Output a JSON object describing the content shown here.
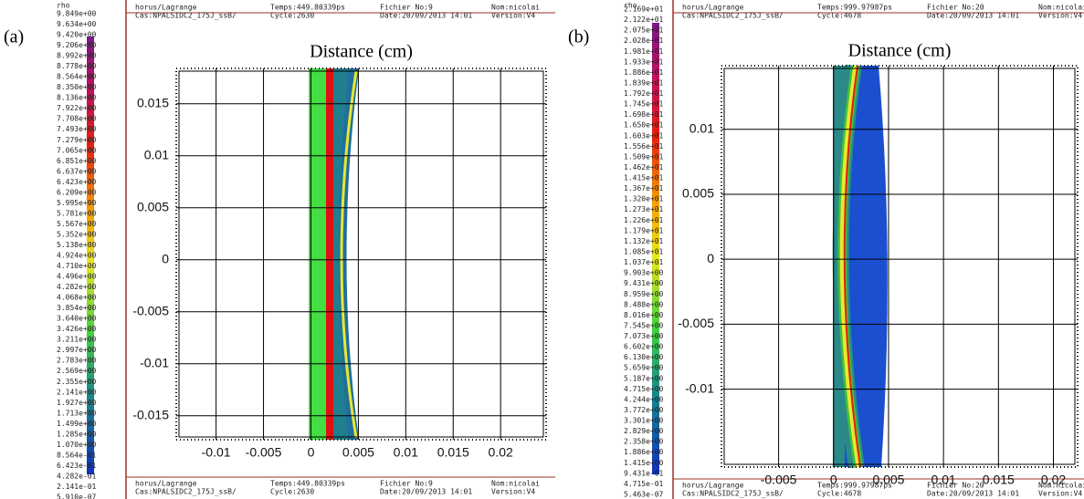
{
  "chart_data": [
    {
      "type": "field",
      "panel_label": "(a)",
      "x_label": "Distance (cm)",
      "colorbar_title": "rho",
      "colorbar_labels": [
        "9.849e+00",
        "9.634e+00",
        "9.420e+00",
        "9.206e+00",
        "8.992e+00",
        "8.778e+00",
        "8.564e+00",
        "8.350e+00",
        "8.136e+00",
        "7.922e+00",
        "7.708e+00",
        "7.493e+00",
        "7.279e+00",
        "7.065e+00",
        "6.851e+00",
        "6.637e+00",
        "6.423e+00",
        "6.209e+00",
        "5.995e+00",
        "5.781e+00",
        "5.567e+00",
        "5.352e+00",
        "5.138e+00",
        "4.924e+00",
        "4.710e+00",
        "4.496e+00",
        "4.282e+00",
        "4.068e+00",
        "3.854e+00",
        "3.640e+00",
        "3.426e+00",
        "3.211e+00",
        "2.997e+00",
        "2.783e+00",
        "2.569e+00",
        "2.355e+00",
        "2.141e+00",
        "1.927e+00",
        "1.713e+00",
        "1.499e+00",
        "1.285e+00",
        "1.070e+00",
        "8.564e-01",
        "6.423e-01",
        "4.282e-01",
        "2.141e-01",
        "5.910e-07"
      ],
      "header": {
        "code": "horus/Lagrange",
        "case": "Cas:NPALSIDC2_175J_ssB/",
        "time": "Temps:449.80339ps",
        "cycle": "Cycle:2630",
        "file": "Fichier No:9",
        "date": "Date:20/09/2013 14:01",
        "name": "Nom:nicolai",
        "version": "Version:V4"
      },
      "xlim": [
        -0.0142,
        0.0248
      ],
      "ylim": [
        -0.0173,
        0.0184
      ],
      "xticks": [
        -0.01,
        -0.005,
        0,
        0.005,
        0.01,
        0.015,
        0.02
      ],
      "yticks": [
        0.015,
        0.01,
        0.005,
        0,
        -0.005,
        -0.01,
        -0.015
      ],
      "grid": true
    },
    {
      "type": "field",
      "panel_label": "(b)",
      "x_label": "Distance (cm)",
      "colorbar_title": "rho",
      "colorbar_labels": [
        "2.169e+01",
        "2.122e+01",
        "2.075e+01",
        "2.028e+01",
        "1.981e+01",
        "1.933e+01",
        "1.886e+01",
        "1.839e+01",
        "1.792e+01",
        "1.745e+01",
        "1.698e+01",
        "1.650e+01",
        "1.603e+01",
        "1.556e+01",
        "1.509e+01",
        "1.462e+01",
        "1.415e+01",
        "1.367e+01",
        "1.320e+01",
        "1.273e+01",
        "1.226e+01",
        "1.179e+01",
        "1.132e+01",
        "1.085e+01",
        "1.037e+01",
        "9.903e+00",
        "9.431e+00",
        "8.959e+00",
        "8.488e+00",
        "8.016e+00",
        "7.545e+00",
        "7.073e+00",
        "6.602e+00",
        "6.130e+00",
        "5.659e+00",
        "5.187e+00",
        "4.715e+00",
        "4.244e+00",
        "3.772e+00",
        "3.301e+00",
        "2.829e+00",
        "2.358e+00",
        "1.886e+00",
        "1.415e+00",
        "9.431e-01",
        "4.715e-01",
        "5.463e-07"
      ],
      "header": {
        "code": "horus/Lagrange",
        "case": "Cas:NPALSIDC2_175J_ssB/",
        "time": "Temps:999.97987ps",
        "cycle": "Cycle:4678",
        "file": "Fichier No:20",
        "date": "Date:20/09/2013 14:01",
        "name": "Nom:nicolai",
        "version": "Version:V4"
      },
      "xlim": [
        -0.0102,
        0.0222
      ],
      "ylim": [
        -0.016,
        0.0149
      ],
      "xticks": [
        -0.005,
        0,
        0.005,
        0.01,
        0.015,
        0.02
      ],
      "yticks": [
        0.01,
        0.005,
        0,
        -0.005,
        -0.01
      ],
      "grid": true
    }
  ]
}
